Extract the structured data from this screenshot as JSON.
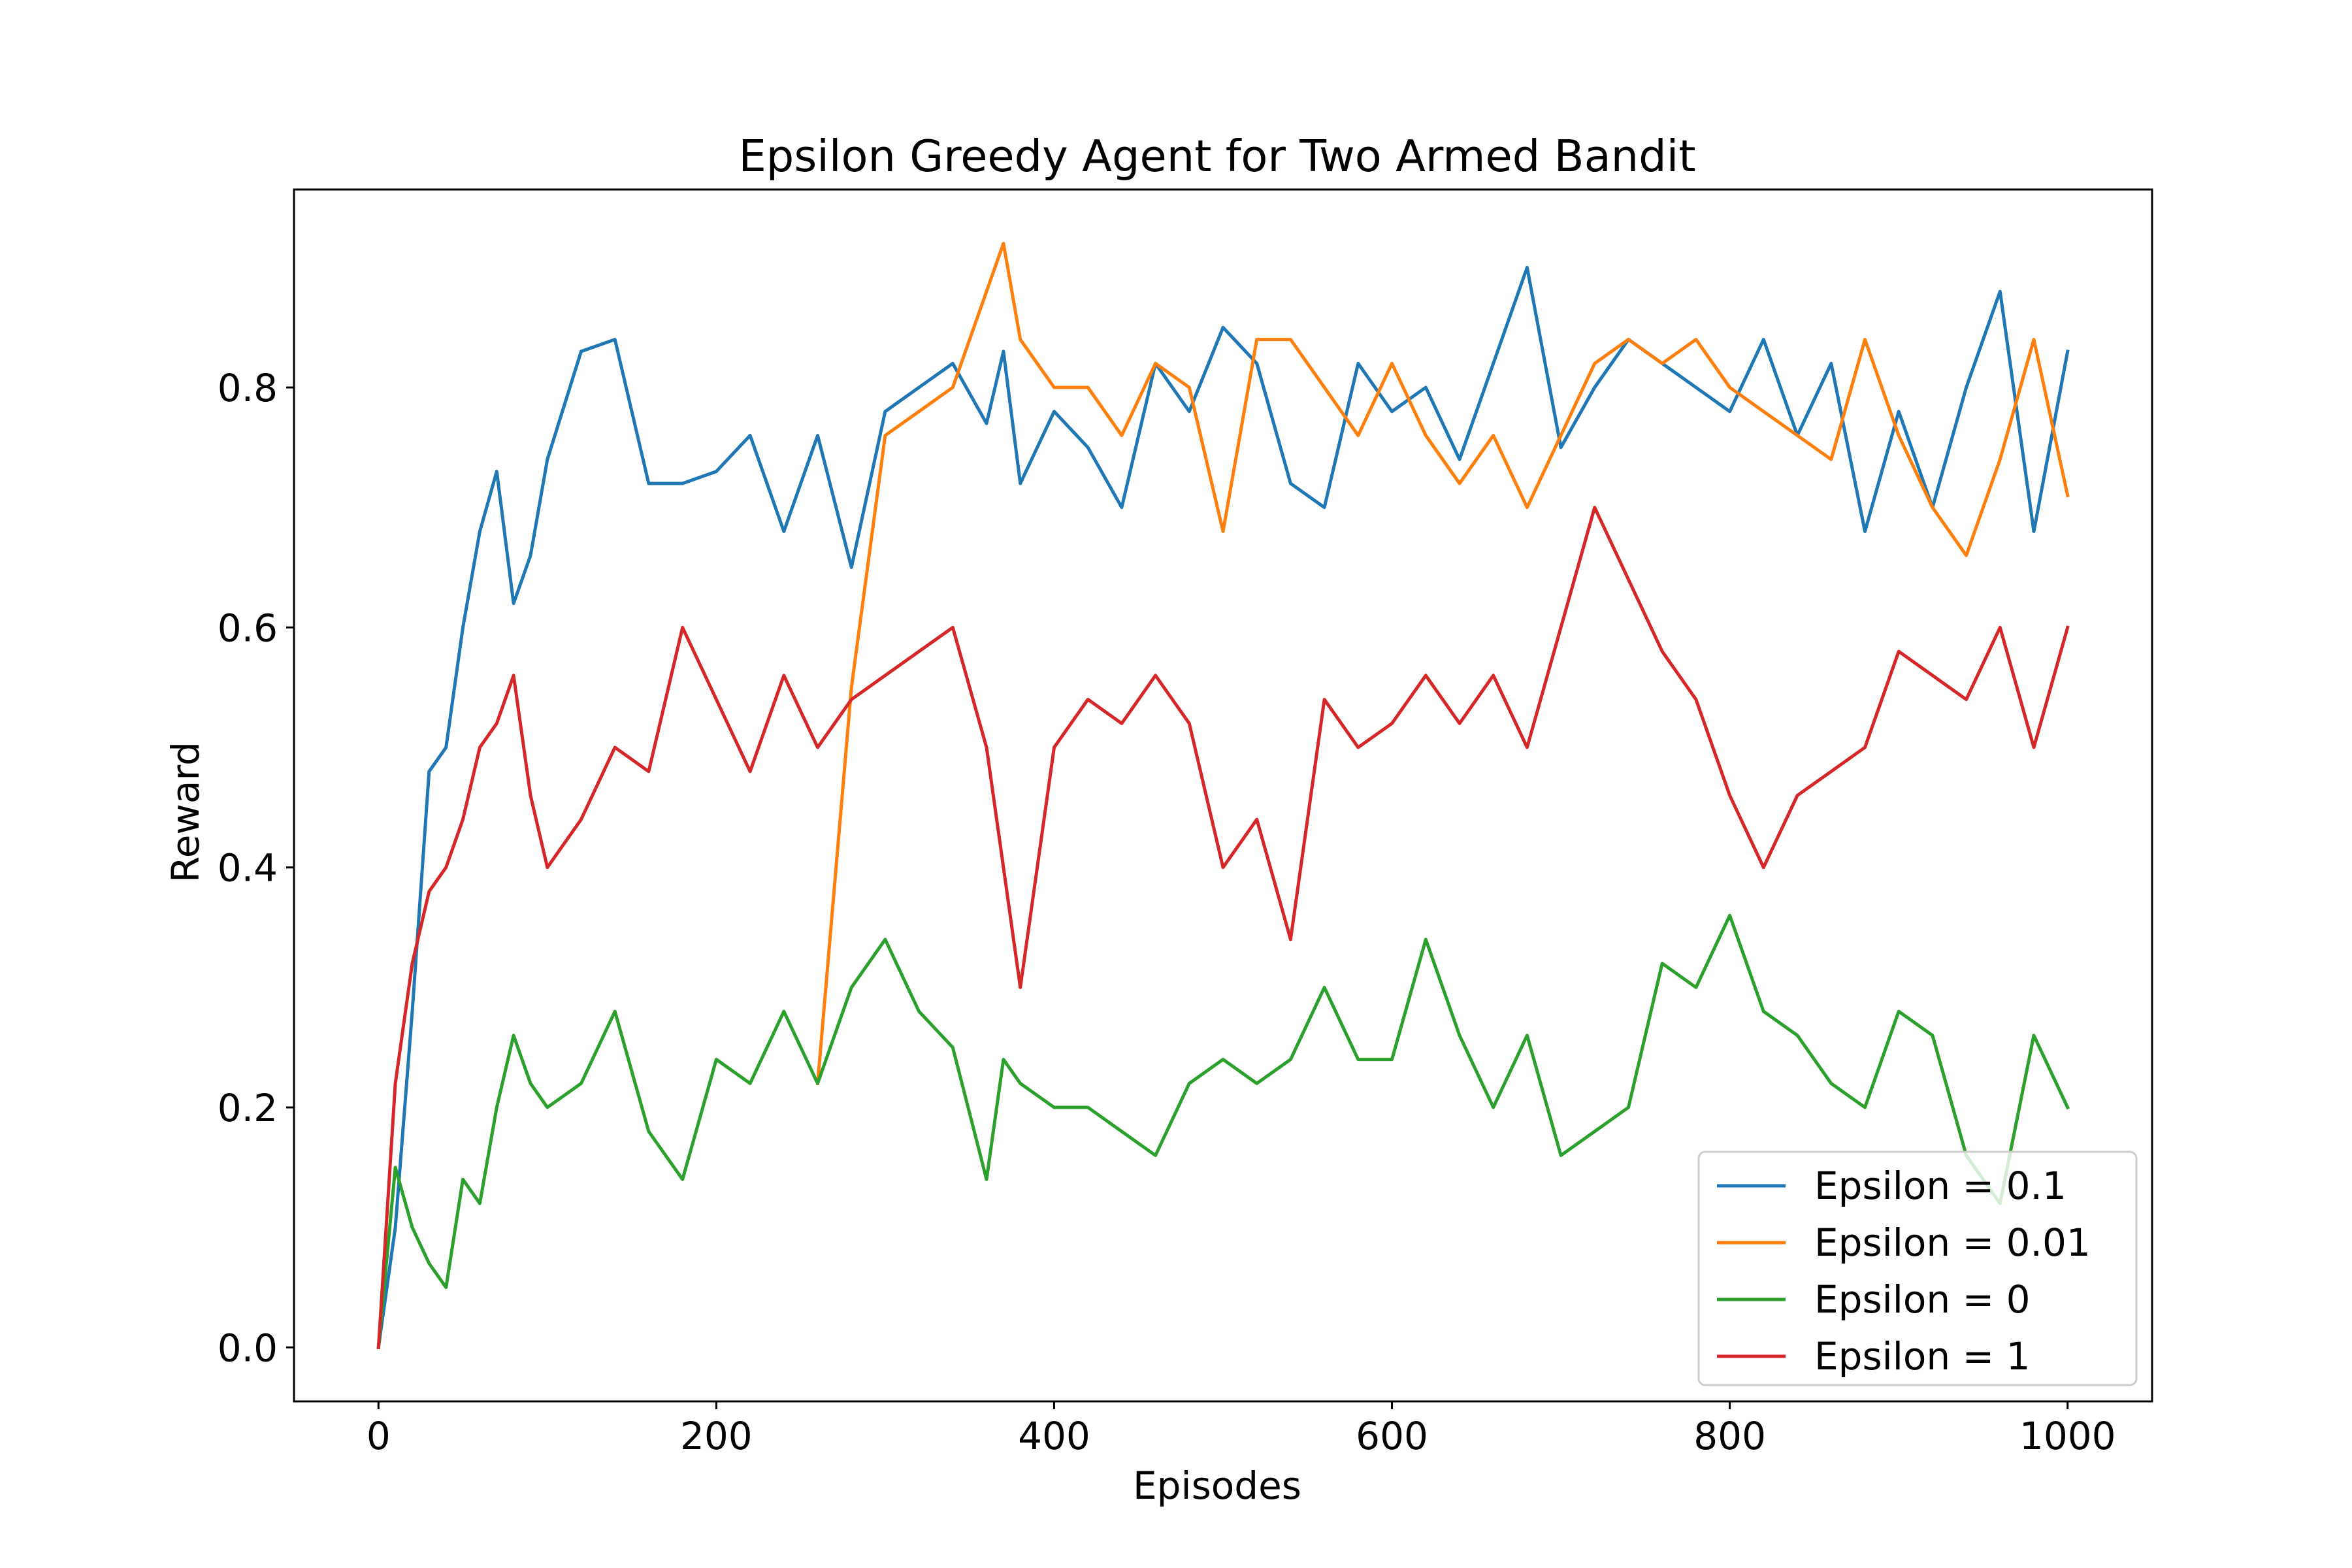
{
  "chart_data": {
    "type": "line",
    "title": "Epsilon Greedy Agent for Two Armed Bandit",
    "xlabel": "Episodes",
    "ylabel": "Reward",
    "xlim": [
      -50,
      1050
    ],
    "ylim": [
      -0.045,
      0.965
    ],
    "x_ticks": [
      {
        "value": 0,
        "label": "0"
      },
      {
        "value": 200,
        "label": "200"
      },
      {
        "value": 400,
        "label": "400"
      },
      {
        "value": 600,
        "label": "600"
      },
      {
        "value": 800,
        "label": "800"
      },
      {
        "value": 1000,
        "label": "1000"
      }
    ],
    "y_ticks": [
      {
        "value": 0.0,
        "label": "0.0"
      },
      {
        "value": 0.2,
        "label": "0.2"
      },
      {
        "value": 0.4,
        "label": "0.4"
      },
      {
        "value": 0.6,
        "label": "0.6"
      },
      {
        "value": 0.8,
        "label": "0.8"
      }
    ],
    "grid": false,
    "legend_position": "lower-right",
    "x": [
      0,
      10,
      20,
      30,
      40,
      50,
      60,
      70,
      80,
      90,
      100,
      120,
      140,
      160,
      180,
      200,
      220,
      240,
      260,
      280,
      300,
      320,
      340,
      360,
      370,
      380,
      400,
      420,
      440,
      460,
      480,
      500,
      520,
      540,
      560,
      580,
      600,
      620,
      640,
      660,
      680,
      700,
      720,
      740,
      760,
      780,
      800,
      820,
      840,
      860,
      880,
      900,
      920,
      940,
      960,
      980,
      1000
    ],
    "series": [
      {
        "name": "Epsilon = 0.1",
        "color": "#1f77b4",
        "values": [
          0.0,
          0.1,
          0.28,
          0.48,
          0.5,
          0.6,
          0.68,
          0.73,
          0.62,
          0.66,
          0.74,
          0.83,
          0.84,
          0.72,
          0.72,
          0.73,
          0.76,
          0.68,
          0.76,
          0.65,
          0.78,
          0.8,
          0.82,
          0.77,
          0.83,
          0.72,
          0.78,
          0.75,
          0.7,
          0.82,
          0.78,
          0.85,
          0.82,
          0.72,
          0.7,
          0.82,
          0.78,
          0.8,
          0.74,
          0.82,
          0.9,
          0.75,
          0.8,
          0.84,
          0.82,
          0.8,
          0.78,
          0.84,
          0.76,
          0.82,
          0.68,
          0.78,
          0.7,
          0.8,
          0.88,
          0.68,
          0.83
        ]
      },
      {
        "name": "Epsilon = 0.01",
        "color": "#ff7f0e",
        "values": [
          null,
          null,
          null,
          null,
          null,
          null,
          null,
          null,
          null,
          null,
          null,
          null,
          null,
          null,
          null,
          null,
          null,
          null,
          0.22,
          0.55,
          0.76,
          0.78,
          0.8,
          0.88,
          0.92,
          0.84,
          0.8,
          0.8,
          0.76,
          0.82,
          0.8,
          0.68,
          0.84,
          0.84,
          0.8,
          0.76,
          0.82,
          0.76,
          0.72,
          0.76,
          0.7,
          0.76,
          0.82,
          0.84,
          0.82,
          0.84,
          0.8,
          0.78,
          0.76,
          0.74,
          0.84,
          0.76,
          0.7,
          0.66,
          0.74,
          0.84,
          0.71
        ]
      },
      {
        "name": "Epsilon = 0",
        "color": "#2ca02c",
        "values": [
          0.0,
          0.15,
          0.1,
          0.07,
          0.05,
          0.14,
          0.12,
          0.2,
          0.26,
          0.22,
          0.2,
          0.22,
          0.28,
          0.18,
          0.14,
          0.24,
          0.22,
          0.28,
          0.22,
          0.3,
          0.34,
          0.28,
          0.25,
          0.14,
          0.24,
          0.22,
          0.2,
          0.2,
          0.18,
          0.16,
          0.22,
          0.24,
          0.22,
          0.24,
          0.3,
          0.24,
          0.24,
          0.34,
          0.26,
          0.2,
          0.26,
          0.16,
          0.18,
          0.2,
          0.32,
          0.3,
          0.36,
          0.28,
          0.26,
          0.22,
          0.2,
          0.28,
          0.26,
          0.16,
          0.12,
          0.26,
          0.2
        ]
      },
      {
        "name": "Epsilon = 1",
        "color": "#d62728",
        "values": [
          0.0,
          0.22,
          0.32,
          0.38,
          0.4,
          0.44,
          0.5,
          0.52,
          0.56,
          0.46,
          0.4,
          0.44,
          0.5,
          0.48,
          0.6,
          0.54,
          0.48,
          0.56,
          0.5,
          0.54,
          0.56,
          0.58,
          0.6,
          0.5,
          0.4,
          0.3,
          0.5,
          0.54,
          0.52,
          0.56,
          0.52,
          0.4,
          0.44,
          0.34,
          0.54,
          0.5,
          0.52,
          0.56,
          0.52,
          0.56,
          0.5,
          0.6,
          0.7,
          0.64,
          0.58,
          0.54,
          0.46,
          0.4,
          0.46,
          0.48,
          0.5,
          0.58,
          0.56,
          0.54,
          0.6,
          0.5,
          0.6
        ]
      }
    ]
  }
}
